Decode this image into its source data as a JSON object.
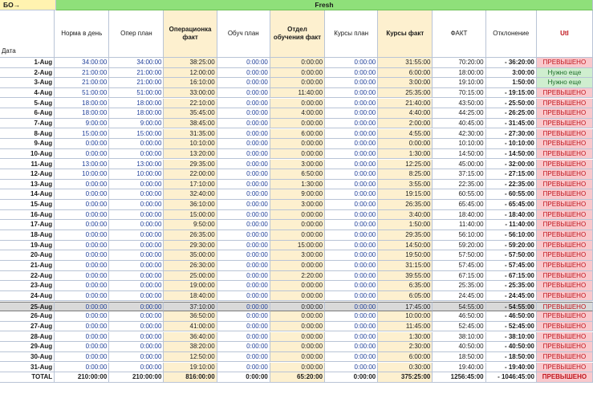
{
  "top_left": "БО→",
  "group_header": "Fresh",
  "date_label": "Дата",
  "headers": [
    "Норма в день",
    "Опер план",
    "Операционка факт",
    "Обуч план",
    "Отдел обучения факт",
    "Курсы план",
    "Курсы факт",
    "ФАКТ",
    "Отклонение",
    "Utl"
  ],
  "rows": [
    [
      "1-Aug",
      "34:00:00",
      "34:00:00",
      "38:25:00",
      "0:00:00",
      "0:00:00",
      "0:00:00",
      "31:55:00",
      "70:20:00",
      "- 36:20:00",
      "ПРЕВЫШЕНО"
    ],
    [
      "2-Aug",
      "21:00:00",
      "21:00:00",
      "12:00:00",
      "0:00:00",
      "0:00:00",
      "0:00:00",
      "6:00:00",
      "18:00:00",
      "3:00:00",
      "Нужно еще"
    ],
    [
      "3-Aug",
      "21:00:00",
      "21:00:00",
      "16:10:00",
      "0:00:00",
      "0:00:00",
      "0:00:00",
      "3:00:00",
      "19:10:00",
      "1:50:00",
      "Нужно еще"
    ],
    [
      "4-Aug",
      "51:00:00",
      "51:00:00",
      "33:00:00",
      "0:00:00",
      "11:40:00",
      "0:00:00",
      "25:35:00",
      "70:15:00",
      "- 19:15:00",
      "ПРЕВЫШЕНО"
    ],
    [
      "5-Aug",
      "18:00:00",
      "18:00:00",
      "22:10:00",
      "0:00:00",
      "0:00:00",
      "0:00:00",
      "21:40:00",
      "43:50:00",
      "- 25:50:00",
      "ПРЕВЫШЕНО"
    ],
    [
      "6-Aug",
      "18:00:00",
      "18:00:00",
      "35:45:00",
      "0:00:00",
      "4:00:00",
      "0:00:00",
      "4:40:00",
      "44:25:00",
      "- 26:25:00",
      "ПРЕВЫШЕНО"
    ],
    [
      "7-Aug",
      "9:00:00",
      "9:00:00",
      "38:45:00",
      "0:00:00",
      "0:00:00",
      "0:00:00",
      "2:00:00",
      "40:45:00",
      "- 31:45:00",
      "ПРЕВЫШЕНО"
    ],
    [
      "8-Aug",
      "15:00:00",
      "15:00:00",
      "31:35:00",
      "0:00:00",
      "6:00:00",
      "0:00:00",
      "4:55:00",
      "42:30:00",
      "- 27:30:00",
      "ПРЕВЫШЕНО"
    ],
    [
      "9-Aug",
      "0:00:00",
      "0:00:00",
      "10:10:00",
      "0:00:00",
      "0:00:00",
      "0:00:00",
      "0:00:00",
      "10:10:00",
      "- 10:10:00",
      "ПРЕВЫШЕНО"
    ],
    [
      "10-Aug",
      "0:00:00",
      "0:00:00",
      "13:20:00",
      "0:00:00",
      "0:00:00",
      "0:00:00",
      "1:30:00",
      "14:50:00",
      "- 14:50:00",
      "ПРЕВЫШЕНО"
    ],
    [
      "11-Aug",
      "13:00:00",
      "13:00:00",
      "29:35:00",
      "0:00:00",
      "3:00:00",
      "0:00:00",
      "12:25:00",
      "45:00:00",
      "- 32:00:00",
      "ПРЕВЫШЕНО"
    ],
    [
      "12-Aug",
      "10:00:00",
      "10:00:00",
      "22:00:00",
      "0:00:00",
      "6:50:00",
      "0:00:00",
      "8:25:00",
      "37:15:00",
      "- 27:15:00",
      "ПРЕВЫШЕНО"
    ],
    [
      "13-Aug",
      "0:00:00",
      "0:00:00",
      "17:10:00",
      "0:00:00",
      "1:30:00",
      "0:00:00",
      "3:55:00",
      "22:35:00",
      "- 22:35:00",
      "ПРЕВЫШЕНО"
    ],
    [
      "14-Aug",
      "0:00:00",
      "0:00:00",
      "32:40:00",
      "0:00:00",
      "9:00:00",
      "0:00:00",
      "19:15:00",
      "60:55:00",
      "- 60:55:00",
      "ПРЕВЫШЕНО"
    ],
    [
      "15-Aug",
      "0:00:00",
      "0:00:00",
      "36:10:00",
      "0:00:00",
      "3:00:00",
      "0:00:00",
      "26:35:00",
      "65:45:00",
      "- 65:45:00",
      "ПРЕВЫШЕНО"
    ],
    [
      "16-Aug",
      "0:00:00",
      "0:00:00",
      "15:00:00",
      "0:00:00",
      "0:00:00",
      "0:00:00",
      "3:40:00",
      "18:40:00",
      "- 18:40:00",
      "ПРЕВЫШЕНО"
    ],
    [
      "17-Aug",
      "0:00:00",
      "0:00:00",
      "9:50:00",
      "0:00:00",
      "0:00:00",
      "0:00:00",
      "1:50:00",
      "11:40:00",
      "- 11:40:00",
      "ПРЕВЫШЕНО"
    ],
    [
      "18-Aug",
      "0:00:00",
      "0:00:00",
      "26:35:00",
      "0:00:00",
      "0:00:00",
      "0:00:00",
      "29:35:00",
      "56:10:00",
      "- 56:10:00",
      "ПРЕВЫШЕНО"
    ],
    [
      "19-Aug",
      "0:00:00",
      "0:00:00",
      "29:30:00",
      "0:00:00",
      "15:00:00",
      "0:00:00",
      "14:50:00",
      "59:20:00",
      "- 59:20:00",
      "ПРЕВЫШЕНО"
    ],
    [
      "20-Aug",
      "0:00:00",
      "0:00:00",
      "35:00:00",
      "0:00:00",
      "3:00:00",
      "0:00:00",
      "19:50:00",
      "57:50:00",
      "- 57:50:00",
      "ПРЕВЫШЕНО"
    ],
    [
      "21-Aug",
      "0:00:00",
      "0:00:00",
      "26:30:00",
      "0:00:00",
      "0:00:00",
      "0:00:00",
      "31:15:00",
      "57:45:00",
      "- 57:45:00",
      "ПРЕВЫШЕНО"
    ],
    [
      "22-Aug",
      "0:00:00",
      "0:00:00",
      "25:00:00",
      "0:00:00",
      "2:20:00",
      "0:00:00",
      "39:55:00",
      "67:15:00",
      "- 67:15:00",
      "ПРЕВЫШЕНО"
    ],
    [
      "23-Aug",
      "0:00:00",
      "0:00:00",
      "19:00:00",
      "0:00:00",
      "0:00:00",
      "0:00:00",
      "6:35:00",
      "25:35:00",
      "- 25:35:00",
      "ПРЕВЫШЕНО"
    ],
    [
      "24-Aug",
      "0:00:00",
      "0:00:00",
      "18:40:00",
      "0:00:00",
      "0:00:00",
      "0:00:00",
      "6:05:00",
      "24:45:00",
      "- 24:45:00",
      "ПРЕВЫШЕНО"
    ],
    [
      "25-Aug",
      "0:00:00",
      "0:00:00",
      "37:10:00",
      "0:00:00",
      "0:00:00",
      "0:00:00",
      "17:45:00",
      "54:55:00",
      "- 54:55:00",
      "ПРЕВЫШЕНО"
    ],
    [
      "26-Aug",
      "0:00:00",
      "0:00:00",
      "36:50:00",
      "0:00:00",
      "0:00:00",
      "0:00:00",
      "10:00:00",
      "46:50:00",
      "- 46:50:00",
      "ПРЕВЫШЕНО"
    ],
    [
      "27-Aug",
      "0:00:00",
      "0:00:00",
      "41:00:00",
      "0:00:00",
      "0:00:00",
      "0:00:00",
      "11:45:00",
      "52:45:00",
      "- 52:45:00",
      "ПРЕВЫШЕНО"
    ],
    [
      "28-Aug",
      "0:00:00",
      "0:00:00",
      "36:40:00",
      "0:00:00",
      "0:00:00",
      "0:00:00",
      "1:30:00",
      "38:10:00",
      "- 38:10:00",
      "ПРЕВЫШЕНО"
    ],
    [
      "29-Aug",
      "0:00:00",
      "0:00:00",
      "38:20:00",
      "0:00:00",
      "0:00:00",
      "0:00:00",
      "2:30:00",
      "40:50:00",
      "- 40:50:00",
      "ПРЕВЫШЕНО"
    ],
    [
      "30-Aug",
      "0:00:00",
      "0:00:00",
      "12:50:00",
      "0:00:00",
      "0:00:00",
      "0:00:00",
      "6:00:00",
      "18:50:00",
      "- 18:50:00",
      "ПРЕВЫШЕНО"
    ],
    [
      "31-Aug",
      "0:00:00",
      "0:00:00",
      "19:10:00",
      "0:00:00",
      "0:00:00",
      "0:00:00",
      "0:30:00",
      "19:40:00",
      "- 19:40:00",
      "ПРЕВЫШЕНО"
    ]
  ],
  "selected_row": 24,
  "total": [
    "TOTAL",
    "210:00:00",
    "210:00:00",
    "816:00:00",
    "0:00:00",
    "65:20:00",
    "0:00:00",
    "375:25:00",
    "1256:45:00",
    "- 1046:45:00",
    "ПРЕВЫШЕНО"
  ],
  "colors": {
    "fresh": "#8fe07a",
    "beige": "#fdf0cf",
    "over_bg": "#f9c8cc",
    "over_text": "#c0161d",
    "need_bg": "#cfeecf",
    "need_text": "#1d6e2a",
    "time_blue": "#1f3f99"
  }
}
